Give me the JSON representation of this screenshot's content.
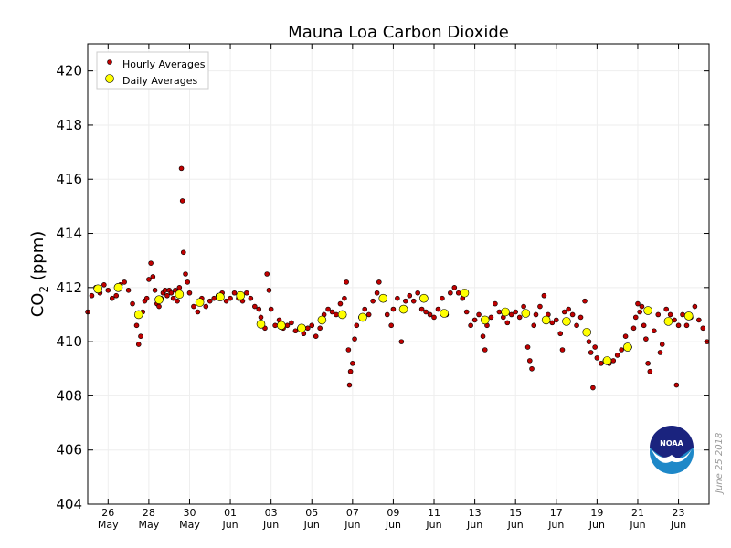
{
  "colors": {
    "hourly": "#c00000",
    "daily": "#ffff00",
    "logo_dark": "#1a237e",
    "logo_light": "#1e88c8"
  },
  "icons": {
    "logo": "noaa-logo-icon"
  },
  "credit": "June 25 2018",
  "logo_text": "NOAA",
  "chart_data": {
    "type": "scatter",
    "title": "Mauna Loa Carbon Dioxide",
    "ylabel_main": "CO",
    "ylabel_sub": "2",
    "ylabel_unit": " (ppm)",
    "xlim": [
      0,
      30.5
    ],
    "ylim": [
      404,
      421
    ],
    "yticks": [
      404,
      406,
      408,
      410,
      412,
      414,
      416,
      418,
      420
    ],
    "xticks": [
      {
        "x": 1,
        "day": "26",
        "month": "May"
      },
      {
        "x": 3,
        "day": "28",
        "month": "May"
      },
      {
        "x": 5,
        "day": "30",
        "month": "May"
      },
      {
        "x": 7,
        "day": "01",
        "month": "Jun"
      },
      {
        "x": 9,
        "day": "03",
        "month": "Jun"
      },
      {
        "x": 11,
        "day": "05",
        "month": "Jun"
      },
      {
        "x": 13,
        "day": "07",
        "month": "Jun"
      },
      {
        "x": 15,
        "day": "09",
        "month": "Jun"
      },
      {
        "x": 17,
        "day": "11",
        "month": "Jun"
      },
      {
        "x": 19,
        "day": "13",
        "month": "Jun"
      },
      {
        "x": 21,
        "day": "15",
        "month": "Jun"
      },
      {
        "x": 23,
        "day": "17",
        "month": "Jun"
      },
      {
        "x": 25,
        "day": "19",
        "month": "Jun"
      },
      {
        "x": 27,
        "day": "21",
        "month": "Jun"
      },
      {
        "x": 29,
        "day": "23",
        "month": "Jun"
      }
    ],
    "grid": true,
    "legend": "top-left",
    "legend_entries": [
      "Hourly Averages",
      "Daily Averages"
    ],
    "daily": [
      [
        0.5,
        411.95
      ],
      [
        1.5,
        412.0
      ],
      [
        2.5,
        411.0
      ],
      [
        3.5,
        411.55
      ],
      [
        4.5,
        411.75
      ],
      [
        5.5,
        411.45
      ],
      [
        6.5,
        411.65
      ],
      [
        7.5,
        411.7
      ],
      [
        8.5,
        410.65
      ],
      [
        9.5,
        410.6
      ],
      [
        10.5,
        410.5
      ],
      [
        11.5,
        410.8
      ],
      [
        12.5,
        411.0
      ],
      [
        13.5,
        410.9
      ],
      [
        14.5,
        411.6
      ],
      [
        15.5,
        411.2
      ],
      [
        16.5,
        411.6
      ],
      [
        17.5,
        411.05
      ],
      [
        18.5,
        411.8
      ],
      [
        19.5,
        410.8
      ],
      [
        20.5,
        411.1
      ],
      [
        21.5,
        411.05
      ],
      [
        22.5,
        410.8
      ],
      [
        23.5,
        410.75
      ],
      [
        24.5,
        410.35
      ],
      [
        25.5,
        409.3
      ],
      [
        26.5,
        409.8
      ],
      [
        27.5,
        411.15
      ],
      [
        28.5,
        410.75
      ],
      [
        29.5,
        410.95
      ]
    ],
    "hourly": [
      [
        0.0,
        411.1
      ],
      [
        0.2,
        411.7
      ],
      [
        0.4,
        412.0
      ],
      [
        0.6,
        411.8
      ],
      [
        0.8,
        412.1
      ],
      [
        1.0,
        411.9
      ],
      [
        1.2,
        411.6
      ],
      [
        1.4,
        411.7
      ],
      [
        1.6,
        412.1
      ],
      [
        1.8,
        412.2
      ],
      [
        2.0,
        411.9
      ],
      [
        2.2,
        411.4
      ],
      [
        2.4,
        410.6
      ],
      [
        2.5,
        409.9
      ],
      [
        2.6,
        410.2
      ],
      [
        2.7,
        411.1
      ],
      [
        2.8,
        411.5
      ],
      [
        2.9,
        411.6
      ],
      [
        3.0,
        412.3
      ],
      [
        3.1,
        412.9
      ],
      [
        3.2,
        412.4
      ],
      [
        3.3,
        411.9
      ],
      [
        3.4,
        411.4
      ],
      [
        3.5,
        411.3
      ],
      [
        3.6,
        411.6
      ],
      [
        3.7,
        411.8
      ],
      [
        3.8,
        411.9
      ],
      [
        3.9,
        411.7
      ],
      [
        4.0,
        411.9
      ],
      [
        4.1,
        411.8
      ],
      [
        4.2,
        411.6
      ],
      [
        4.3,
        411.9
      ],
      [
        4.4,
        411.5
      ],
      [
        4.5,
        412.0
      ],
      [
        4.6,
        416.4
      ],
      [
        4.65,
        415.2
      ],
      [
        4.7,
        413.3
      ],
      [
        4.8,
        412.5
      ],
      [
        4.9,
        412.2
      ],
      [
        5.0,
        411.8
      ],
      [
        5.2,
        411.3
      ],
      [
        5.4,
        411.1
      ],
      [
        5.6,
        411.6
      ],
      [
        5.8,
        411.3
      ],
      [
        6.0,
        411.5
      ],
      [
        6.2,
        411.6
      ],
      [
        6.4,
        411.7
      ],
      [
        6.6,
        411.8
      ],
      [
        6.8,
        411.5
      ],
      [
        7.0,
        411.6
      ],
      [
        7.2,
        411.8
      ],
      [
        7.4,
        411.6
      ],
      [
        7.6,
        411.5
      ],
      [
        7.8,
        411.8
      ],
      [
        8.0,
        411.6
      ],
      [
        8.2,
        411.3
      ],
      [
        8.4,
        411.2
      ],
      [
        8.5,
        410.9
      ],
      [
        8.7,
        410.5
      ],
      [
        8.8,
        412.5
      ],
      [
        8.9,
        411.9
      ],
      [
        9.0,
        411.2
      ],
      [
        9.2,
        410.6
      ],
      [
        9.4,
        410.8
      ],
      [
        9.6,
        410.5
      ],
      [
        9.8,
        410.6
      ],
      [
        10.0,
        410.7
      ],
      [
        10.2,
        410.4
      ],
      [
        10.4,
        410.5
      ],
      [
        10.6,
        410.3
      ],
      [
        10.8,
        410.5
      ],
      [
        11.0,
        410.6
      ],
      [
        11.2,
        410.2
      ],
      [
        11.4,
        410.5
      ],
      [
        11.6,
        411.0
      ],
      [
        11.8,
        411.2
      ],
      [
        12.0,
        411.1
      ],
      [
        12.2,
        411.0
      ],
      [
        12.4,
        411.4
      ],
      [
        12.6,
        411.6
      ],
      [
        12.7,
        412.2
      ],
      [
        12.8,
        409.7
      ],
      [
        12.85,
        408.4
      ],
      [
        12.9,
        408.9
      ],
      [
        13.0,
        409.2
      ],
      [
        13.1,
        410.1
      ],
      [
        13.2,
        410.6
      ],
      [
        13.4,
        410.9
      ],
      [
        13.6,
        411.2
      ],
      [
        13.8,
        411.0
      ],
      [
        14.0,
        411.5
      ],
      [
        14.2,
        411.8
      ],
      [
        14.3,
        412.2
      ],
      [
        14.5,
        411.6
      ],
      [
        14.7,
        411.0
      ],
      [
        14.9,
        410.6
      ],
      [
        15.0,
        411.2
      ],
      [
        15.2,
        411.6
      ],
      [
        15.4,
        410.0
      ],
      [
        15.6,
        411.5
      ],
      [
        15.8,
        411.7
      ],
      [
        16.0,
        411.5
      ],
      [
        16.2,
        411.8
      ],
      [
        16.4,
        411.2
      ],
      [
        16.6,
        411.1
      ],
      [
        16.8,
        411.0
      ],
      [
        17.0,
        410.9
      ],
      [
        17.2,
        411.2
      ],
      [
        17.4,
        411.6
      ],
      [
        17.6,
        411.0
      ],
      [
        17.8,
        411.8
      ],
      [
        18.0,
        412.0
      ],
      [
        18.2,
        411.8
      ],
      [
        18.4,
        411.6
      ],
      [
        18.6,
        411.1
      ],
      [
        18.8,
        410.6
      ],
      [
        19.0,
        410.8
      ],
      [
        19.2,
        411.0
      ],
      [
        19.4,
        410.2
      ],
      [
        19.5,
        409.7
      ],
      [
        19.6,
        410.6
      ],
      [
        19.8,
        410.9
      ],
      [
        20.0,
        411.4
      ],
      [
        20.2,
        411.1
      ],
      [
        20.4,
        410.9
      ],
      [
        20.6,
        410.7
      ],
      [
        20.8,
        411.0
      ],
      [
        21.0,
        411.1
      ],
      [
        21.2,
        410.9
      ],
      [
        21.4,
        411.3
      ],
      [
        21.6,
        409.8
      ],
      [
        21.7,
        409.3
      ],
      [
        21.8,
        409.0
      ],
      [
        21.9,
        410.6
      ],
      [
        22.0,
        411.0
      ],
      [
        22.2,
        411.3
      ],
      [
        22.4,
        411.7
      ],
      [
        22.6,
        411.0
      ],
      [
        22.8,
        410.7
      ],
      [
        23.0,
        410.8
      ],
      [
        23.2,
        410.3
      ],
      [
        23.3,
        409.7
      ],
      [
        23.4,
        411.1
      ],
      [
        23.6,
        411.2
      ],
      [
        23.8,
        411.0
      ],
      [
        24.0,
        410.6
      ],
      [
        24.2,
        410.9
      ],
      [
        24.4,
        411.5
      ],
      [
        24.6,
        410.0
      ],
      [
        24.7,
        409.6
      ],
      [
        24.8,
        408.3
      ],
      [
        24.9,
        409.8
      ],
      [
        25.0,
        409.4
      ],
      [
        25.2,
        409.2
      ],
      [
        25.4,
        409.3
      ],
      [
        25.6,
        409.2
      ],
      [
        25.8,
        409.3
      ],
      [
        26.0,
        409.5
      ],
      [
        26.2,
        409.7
      ],
      [
        26.4,
        410.2
      ],
      [
        26.6,
        409.8
      ],
      [
        26.8,
        410.5
      ],
      [
        26.9,
        410.9
      ],
      [
        27.0,
        411.4
      ],
      [
        27.1,
        411.1
      ],
      [
        27.2,
        411.3
      ],
      [
        27.3,
        410.6
      ],
      [
        27.4,
        410.1
      ],
      [
        27.5,
        409.2
      ],
      [
        27.6,
        408.9
      ],
      [
        27.8,
        410.4
      ],
      [
        28.0,
        411.0
      ],
      [
        28.1,
        409.6
      ],
      [
        28.2,
        409.9
      ],
      [
        28.4,
        411.2
      ],
      [
        28.6,
        411.0
      ],
      [
        28.8,
        410.8
      ],
      [
        28.9,
        408.4
      ],
      [
        29.0,
        410.6
      ],
      [
        29.2,
        411.0
      ],
      [
        29.4,
        410.6
      ],
      [
        29.6,
        410.9
      ],
      [
        29.8,
        411.3
      ],
      [
        30.0,
        410.8
      ],
      [
        30.2,
        410.5
      ],
      [
        30.4,
        410.0
      ]
    ]
  }
}
